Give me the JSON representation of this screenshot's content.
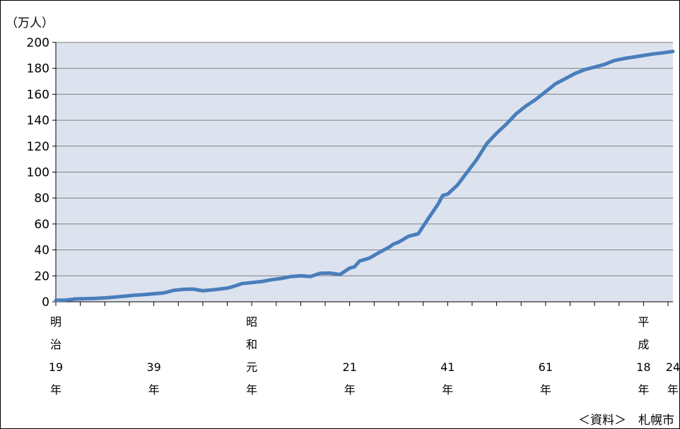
{
  "chart_data": {
    "type": "line",
    "unit_label": "（万人）",
    "source": "＜資料＞　札幌市",
    "ylim": [
      0,
      200
    ],
    "yticks": [
      0,
      20,
      40,
      60,
      80,
      100,
      120,
      140,
      160,
      180,
      200
    ],
    "grid": true,
    "line_color": "#4A7EBB",
    "plot_background": "#DCE3EF",
    "x_labels": [
      {
        "x": 1886,
        "lines": [
          "明",
          "治",
          "19",
          "年"
        ]
      },
      {
        "x": 1906,
        "lines": [
          "",
          "",
          "39",
          "年"
        ]
      },
      {
        "x": 1926,
        "lines": [
          "昭",
          "和",
          "元",
          "年"
        ]
      },
      {
        "x": 1946,
        "lines": [
          "",
          "",
          "21",
          "年"
        ]
      },
      {
        "x": 1966,
        "lines": [
          "",
          "",
          "41",
          "年"
        ]
      },
      {
        "x": 1986,
        "lines": [
          "",
          "",
          "61",
          "年"
        ]
      },
      {
        "x": 2006,
        "lines": [
          "平",
          "成",
          "18",
          "年"
        ]
      },
      {
        "x": 2012,
        "lines": [
          "",
          "",
          "24",
          "年"
        ]
      }
    ],
    "xlim": [
      1886,
      2012
    ],
    "series": [
      {
        "x": [
          1886,
          1888,
          1890,
          1892,
          1894,
          1896,
          1898,
          1900,
          1902,
          1904,
          1906,
          1908,
          1910,
          1912,
          1914,
          1916,
          1918,
          1920,
          1921,
          1922,
          1924,
          1926,
          1928,
          1930,
          1932,
          1934,
          1936,
          1938,
          1940,
          1942,
          1944,
          1946,
          1947,
          1948,
          1950,
          1952,
          1954,
          1955,
          1956,
          1958,
          1960,
          1962,
          1964,
          1965,
          1966,
          1968,
          1970,
          1972,
          1974,
          1976,
          1978,
          1980,
          1982,
          1984,
          1986,
          1988,
          1990,
          1992,
          1994,
          1996,
          1998,
          2000,
          2002,
          2004,
          2006,
          2008,
          2010,
          2012
        ],
        "y": [
          1.2,
          1.3,
          2.2,
          2.4,
          2.6,
          3.0,
          3.6,
          4.3,
          5.0,
          5.5,
          6.2,
          6.8,
          8.8,
          9.6,
          9.8,
          8.5,
          9.2,
          10.1,
          10.5,
          11.5,
          14,
          14.8,
          15.6,
          17,
          18,
          19.5,
          20,
          19.5,
          22,
          22.1,
          21,
          26,
          27,
          31.4,
          33.6,
          38,
          42,
          44.6,
          46,
          50.5,
          52.4,
          64,
          75,
          82,
          83,
          90,
          100,
          110,
          122,
          130,
          137,
          145,
          151,
          156,
          162,
          168,
          172,
          176,
          179,
          181,
          183,
          186,
          187.5,
          188.8,
          189.9,
          191.1,
          192,
          193
        ]
      }
    ]
  }
}
